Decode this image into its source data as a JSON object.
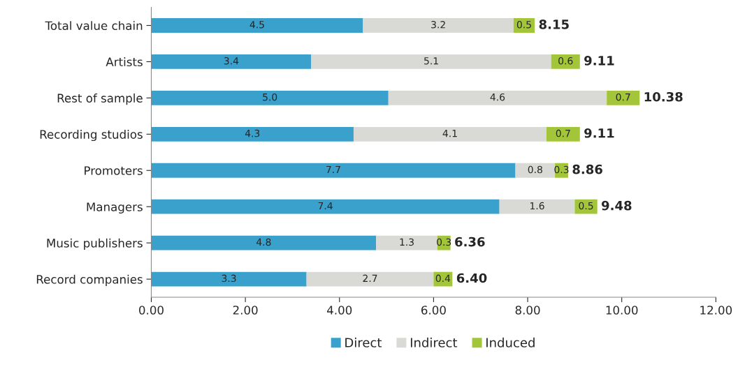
{
  "chart_data": {
    "type": "bar",
    "orientation": "horizontal",
    "stacked": true,
    "categories": [
      "Total value chain",
      "Artists",
      "Rest of sample",
      "Recording studios",
      "Promoters",
      "Managers",
      "Music publishers",
      "Record companies"
    ],
    "series": [
      {
        "name": "Direct",
        "color": "#3aa0cc",
        "values": [
          4.5,
          3.4,
          5.04,
          4.3,
          7.74,
          7.4,
          4.78,
          3.3
        ],
        "value_labels": [
          "4.5",
          "3.4",
          "5.0",
          "4.3",
          "7.7",
          "7.4",
          "4.8",
          "3.3"
        ]
      },
      {
        "name": "Indirect",
        "color": "#d9d9d6",
        "values": [
          3.2,
          5.1,
          4.64,
          4.1,
          0.84,
          1.6,
          1.3,
          2.7
        ],
        "value_labels": [
          "3.2",
          "5.1",
          "4.6",
          "4.1",
          "0.8",
          "1.6",
          "1.3",
          "2.7"
        ]
      },
      {
        "name": "Induced",
        "color": "#a3c53a",
        "values": [
          0.45,
          0.61,
          0.7,
          0.71,
          0.28,
          0.48,
          0.28,
          0.4
        ],
        "value_labels": [
          "0.5",
          "0.6",
          "0.7",
          "0.7",
          "0.3",
          "0.5",
          "0.3",
          "0.4"
        ]
      }
    ],
    "totals": [
      "8.15",
      "9.11",
      "10.38",
      "9.11",
      "8.86",
      "9.48",
      "6.36",
      "6.40"
    ],
    "xlim": [
      0,
      12
    ],
    "xticks": [
      {
        "value": 0,
        "label": "0.00"
      },
      {
        "value": 2,
        "label": "2.00"
      },
      {
        "value": 4,
        "label": "4.00"
      },
      {
        "value": 6,
        "label": "6.00"
      },
      {
        "value": 8,
        "label": "8.00"
      },
      {
        "value": 10,
        "label": "10.00"
      },
      {
        "value": 12,
        "label": "12.00"
      }
    ],
    "grid": false,
    "legend": "bottom"
  }
}
